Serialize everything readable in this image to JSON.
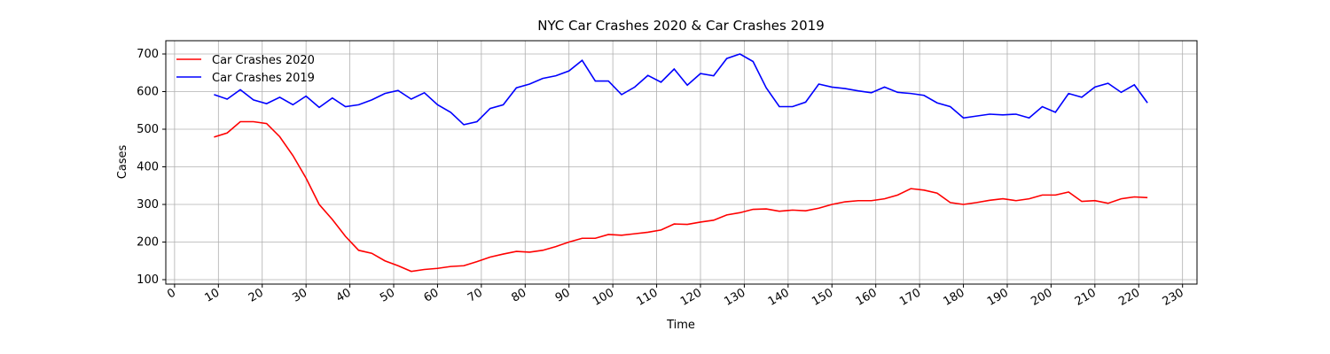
{
  "chart_data": {
    "type": "line",
    "title": "NYC Car Crashes 2020 & Car Crashes 2019",
    "x_label": "Time",
    "y_label": "Cases",
    "x": [
      9,
      12,
      15,
      18,
      21,
      24,
      27,
      30,
      33,
      36,
      39,
      42,
      45,
      48,
      51,
      54,
      57,
      60,
      63,
      66,
      69,
      72,
      75,
      78,
      81,
      84,
      87,
      90,
      93,
      96,
      99,
      102,
      105,
      108,
      111,
      114,
      117,
      120,
      123,
      126,
      129,
      132,
      135,
      138,
      141,
      144,
      147,
      150,
      153,
      156,
      159,
      162,
      165,
      168,
      171,
      174,
      177,
      180,
      183,
      186,
      189,
      192,
      195,
      198,
      201,
      204,
      207,
      210,
      213,
      216,
      219,
      222
    ],
    "series": [
      {
        "name": "Car Crashes 2020",
        "color": "#ff0000",
        "values": [
          479,
          490,
          520,
          520,
          515,
          480,
          430,
          370,
          300,
          260,
          215,
          178,
          170,
          150,
          137,
          122,
          127,
          130,
          135,
          137,
          148,
          160,
          168,
          175,
          173,
          178,
          188,
          200,
          210,
          210,
          220,
          218,
          222,
          226,
          232,
          248,
          247,
          253,
          258,
          272,
          278,
          287,
          288,
          282,
          285,
          283,
          290,
          300,
          307,
          310,
          310,
          315,
          325,
          342,
          338,
          330,
          305,
          300,
          305,
          311,
          315,
          310,
          315,
          325,
          325,
          333,
          308,
          310,
          303,
          315,
          320,
          318
        ]
      },
      {
        "name": "Car Crashes 2019",
        "color": "#0000ff",
        "values": [
          592,
          580,
          605,
          578,
          568,
          585,
          565,
          588,
          558,
          583,
          560,
          565,
          578,
          595,
          603,
          580,
          597,
          565,
          545,
          512,
          520,
          555,
          565,
          610,
          620,
          635,
          642,
          655,
          683,
          628,
          628,
          592,
          612,
          643,
          625,
          660,
          617,
          648,
          642,
          688,
          700,
          680,
          610,
          560,
          560,
          572,
          620,
          612,
          608,
          602,
          597,
          612,
          598,
          595,
          590,
          570,
          560,
          530,
          535,
          540,
          538,
          540,
          530,
          560,
          545,
          595,
          585,
          612,
          622,
          598,
          618,
          570
        ]
      }
    ],
    "xlim": [
      -2,
      233.3
    ],
    "ylim": [
      88.2,
      735.3
    ],
    "xticks": [
      0,
      10,
      20,
      30,
      40,
      50,
      60,
      70,
      80,
      90,
      100,
      110,
      120,
      130,
      140,
      150,
      160,
      170,
      180,
      190,
      200,
      210,
      220,
      230
    ],
    "yticks": [
      100,
      200,
      300,
      400,
      500,
      600,
      700
    ],
    "grid": true,
    "legend": "upper left"
  }
}
